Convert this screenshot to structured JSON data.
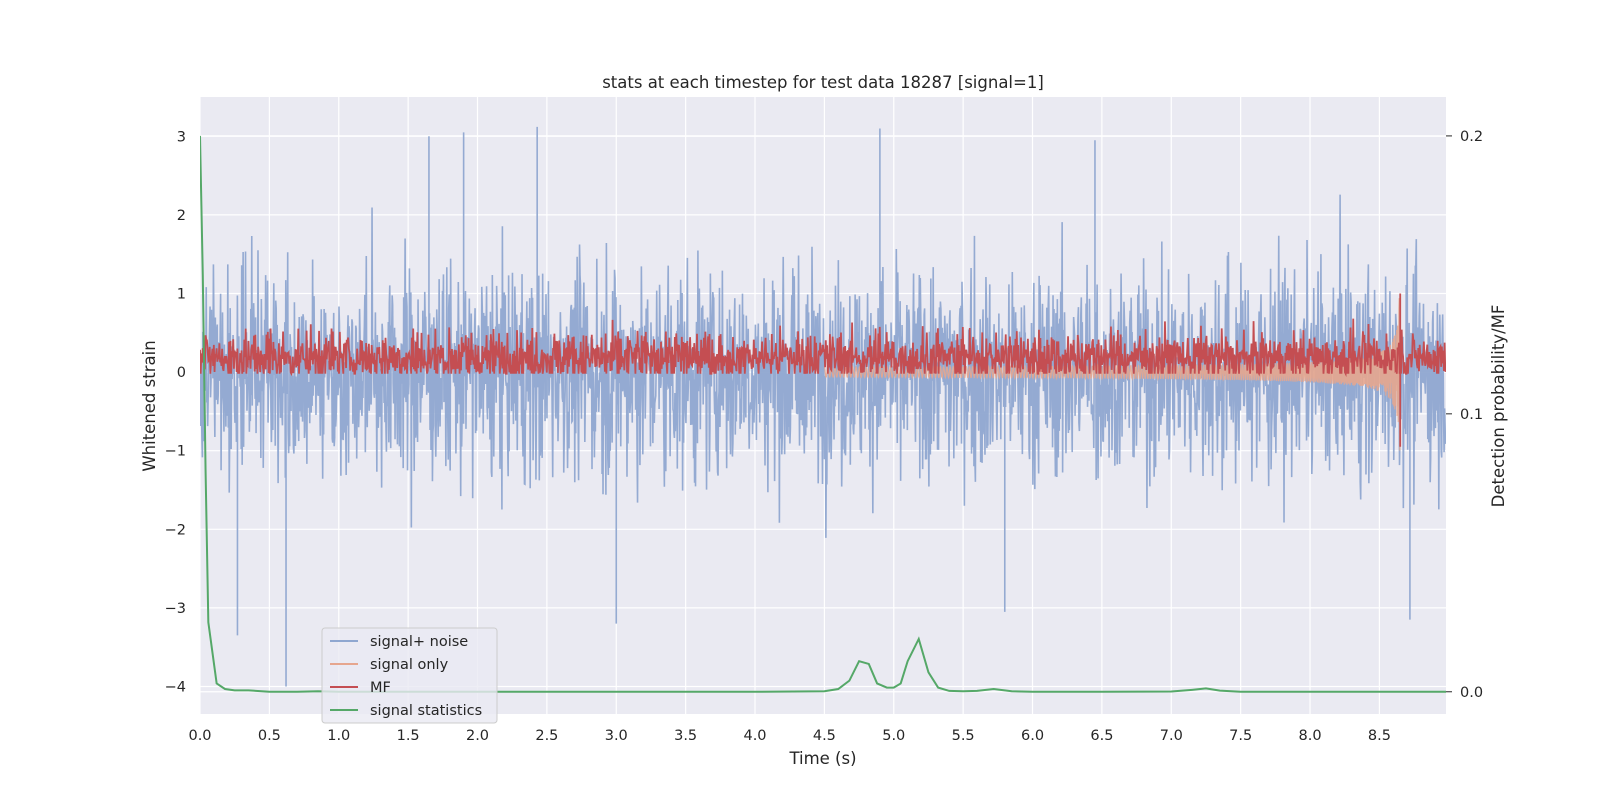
{
  "chart_data": {
    "type": "line",
    "title": "stats at each timestep for test data 18287 [signal=1]",
    "xlabel": "Time (s)",
    "ylabel": "Whitened strain",
    "y2label": "Detection probability/MF",
    "xlim": [
      0.0,
      8.98
    ],
    "ylim": [
      -4.35,
      3.5
    ],
    "y2lim": [
      -0.008,
      0.214
    ],
    "x_ticks": [
      "0.0",
      "0.5",
      "1.0",
      "1.5",
      "2.0",
      "2.5",
      "3.0",
      "3.5",
      "4.0",
      "4.5",
      "5.0",
      "5.5",
      "6.0",
      "6.5",
      "7.0",
      "7.5",
      "8.0",
      "8.5"
    ],
    "y_ticks": [
      "−4",
      "−3",
      "−2",
      "−1",
      "0",
      "1",
      "2",
      "3"
    ],
    "y2_ticks": [
      "0.0",
      "0.1",
      "0.2"
    ],
    "grid": true,
    "legend_position": "lower-left",
    "colors": {
      "signal_noise": "#8fa7d0",
      "signal_only": "#e6a68e",
      "mf": "#c44e52",
      "signal_statistics": "#55a868",
      "plot_background": "#eaeaf2",
      "grid": "#ffffff"
    },
    "series": [
      {
        "name": "signal+ noise",
        "axis": "left",
        "style": "dense noise band",
        "x_range": [
          0.0,
          8.98
        ],
        "typical_range": [
          -2.0,
          2.0
        ],
        "extremes": {
          "max": 3.1,
          "min": -4.0
        },
        "peaks": [
          {
            "x": 1.65,
            "y": 3.0
          },
          {
            "x": 1.9,
            "y": 3.05
          },
          {
            "x": 2.43,
            "y": 3.12
          },
          {
            "x": 4.9,
            "y": 3.1
          },
          {
            "x": 6.45,
            "y": 2.95
          },
          {
            "x": 0.62,
            "y": -4.0
          },
          {
            "x": 0.27,
            "y": -3.35
          },
          {
            "x": 3.0,
            "y": -3.2
          },
          {
            "x": 5.8,
            "y": -3.05
          },
          {
            "x": 8.72,
            "y": -3.15
          }
        ]
      },
      {
        "name": "signal only",
        "axis": "left",
        "style": "chirp",
        "x_range": [
          4.5,
          8.65
        ],
        "amplitude_start": 0.02,
        "amplitude_end": 1.0,
        "end_time": 8.65
      },
      {
        "name": "MF",
        "axis": "left",
        "style": "noisy band",
        "x_range": [
          0.0,
          8.98
        ],
        "typical_range": [
          0.0,
          0.55
        ],
        "peak": {
          "x": 8.65,
          "y": 1.0
        },
        "trough": {
          "x": 8.65,
          "y": -0.95
        }
      },
      {
        "name": "signal statistics",
        "axis": "right",
        "style": "line",
        "x": [
          0.0,
          0.02,
          0.04,
          0.06,
          0.12,
          0.18,
          0.25,
          0.35,
          0.5,
          0.7,
          0.85,
          1.0,
          1.5,
          2.0,
          2.5,
          3.0,
          3.5,
          4.0,
          4.5,
          4.6,
          4.68,
          4.75,
          4.82,
          4.88,
          4.95,
          5.0,
          5.05,
          5.1,
          5.18,
          5.25,
          5.32,
          5.4,
          5.5,
          5.6,
          5.72,
          5.85,
          6.0,
          6.5,
          7.0,
          7.15,
          7.25,
          7.35,
          7.5,
          8.0,
          8.5,
          8.98
        ],
        "y": [
          0.2,
          0.15,
          0.08,
          0.025,
          0.003,
          0.001,
          0.0005,
          0.0005,
          0.0,
          0.0,
          0.0002,
          0.0,
          0.0,
          0.0,
          0.0,
          0.0,
          0.0,
          0.0,
          0.0002,
          0.001,
          0.004,
          0.011,
          0.01,
          0.003,
          0.0015,
          0.0015,
          0.003,
          0.011,
          0.019,
          0.007,
          0.0015,
          0.0003,
          0.0002,
          0.0003,
          0.001,
          0.0002,
          0.0,
          0.0,
          0.0001,
          0.0007,
          0.0012,
          0.0004,
          0.0,
          0.0,
          0.0,
          0.0
        ]
      }
    ]
  }
}
